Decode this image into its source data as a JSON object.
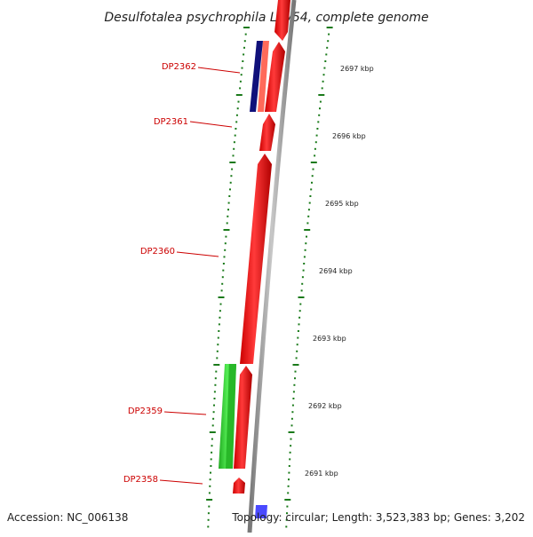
{
  "title": "Desulfotalea psychrophila LSv54, complete genome",
  "footer": {
    "accession": "Accession: NC_006138",
    "topology": "Topology: circular; Length: 3,523,383 bp; Genes: 3,202"
  },
  "scale_labels": [
    "2697 kbp",
    "2696 kbp",
    "2695 kbp",
    "2694 kbp",
    "2693 kbp",
    "2692 kbp",
    "2691 kbp"
  ],
  "gene_labels": [
    "DP2362",
    "DP2361",
    "DP2360",
    "DP2359",
    "DP2358"
  ],
  "colors": {
    "forward_gene": "#ff0000",
    "forward_gene_alt": "#ff6a5a",
    "rna_gene": "#10107a",
    "green_feature": "#2ecc2e",
    "blue_feature": "#3a3aff",
    "backbone": "#9a9a9a",
    "label_red": "#cc0000",
    "tick_green": "#1a7a1a"
  }
}
